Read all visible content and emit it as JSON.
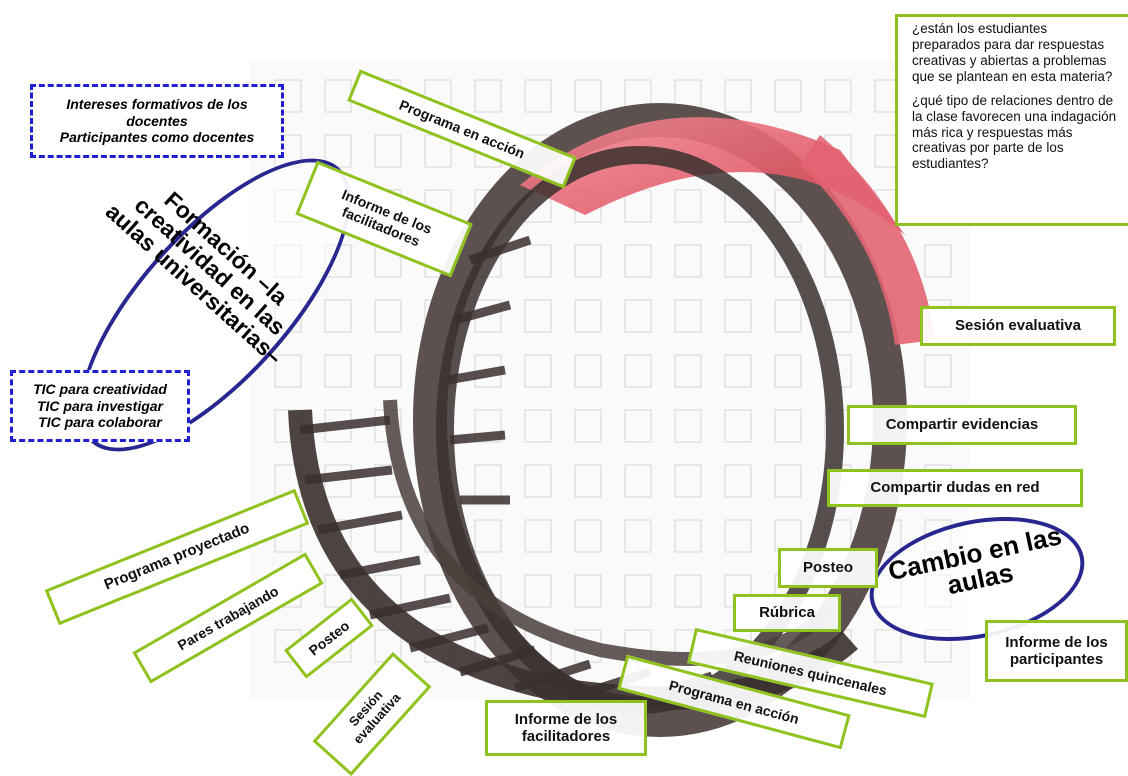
{
  "ellipse_left": {
    "text": "Formación –la\ncreatividad en las\naulas universitarias–"
  },
  "ellipse_right": {
    "text": "Cambio en las\naulas"
  },
  "dashed_boxes": {
    "docentes": "Intereses formativos de los\ndocentes\nParticipantes como docentes",
    "tic": "TIC para creatividad\nTIC para investigar\nTIC para colaborar"
  },
  "questions": [
    "¿están los estudiantes preparados para dar respuestas creativas y abiertas a problemas que se plantean en esta materia?",
    "¿qué tipo de relaciones dentro de la clase favorecen una indagación más rica y respuestas más creativas por parte de los estudiantes?"
  ],
  "labels": {
    "programa_accion_top": "Programa en acción",
    "informe_facilitadores_top": "Informe de los\nfacilitadores",
    "sesion_evaluativa_right": "Sesión evaluativa",
    "compartir_evidencias": "Compartir evidencias",
    "compartir_dudas": "Compartir dudas en red",
    "posteo_right": "Posteo",
    "rubrica": "Rúbrica",
    "informe_participantes": "Informe de los\nparticipantes",
    "reuniones_quincenales": "Reuniones quincenales",
    "programa_accion_bottom": "Programa en acción",
    "informe_facilitadores_bottom": "Informe de los\nfacilitadores",
    "programa_proyectado": "Programa proyectado",
    "pares_trabajando": "Pares trabajando",
    "posteo_left": "Posteo",
    "sesion_evaluativa_left": "Sesión\nevaluativa"
  },
  "colors": {
    "green_border": "#8fc21e",
    "blue_dashed": "#1f1fd6",
    "ellipse_border": "#27278f",
    "ring_red": "#e0505e",
    "ring_dark": "#3a302e"
  }
}
